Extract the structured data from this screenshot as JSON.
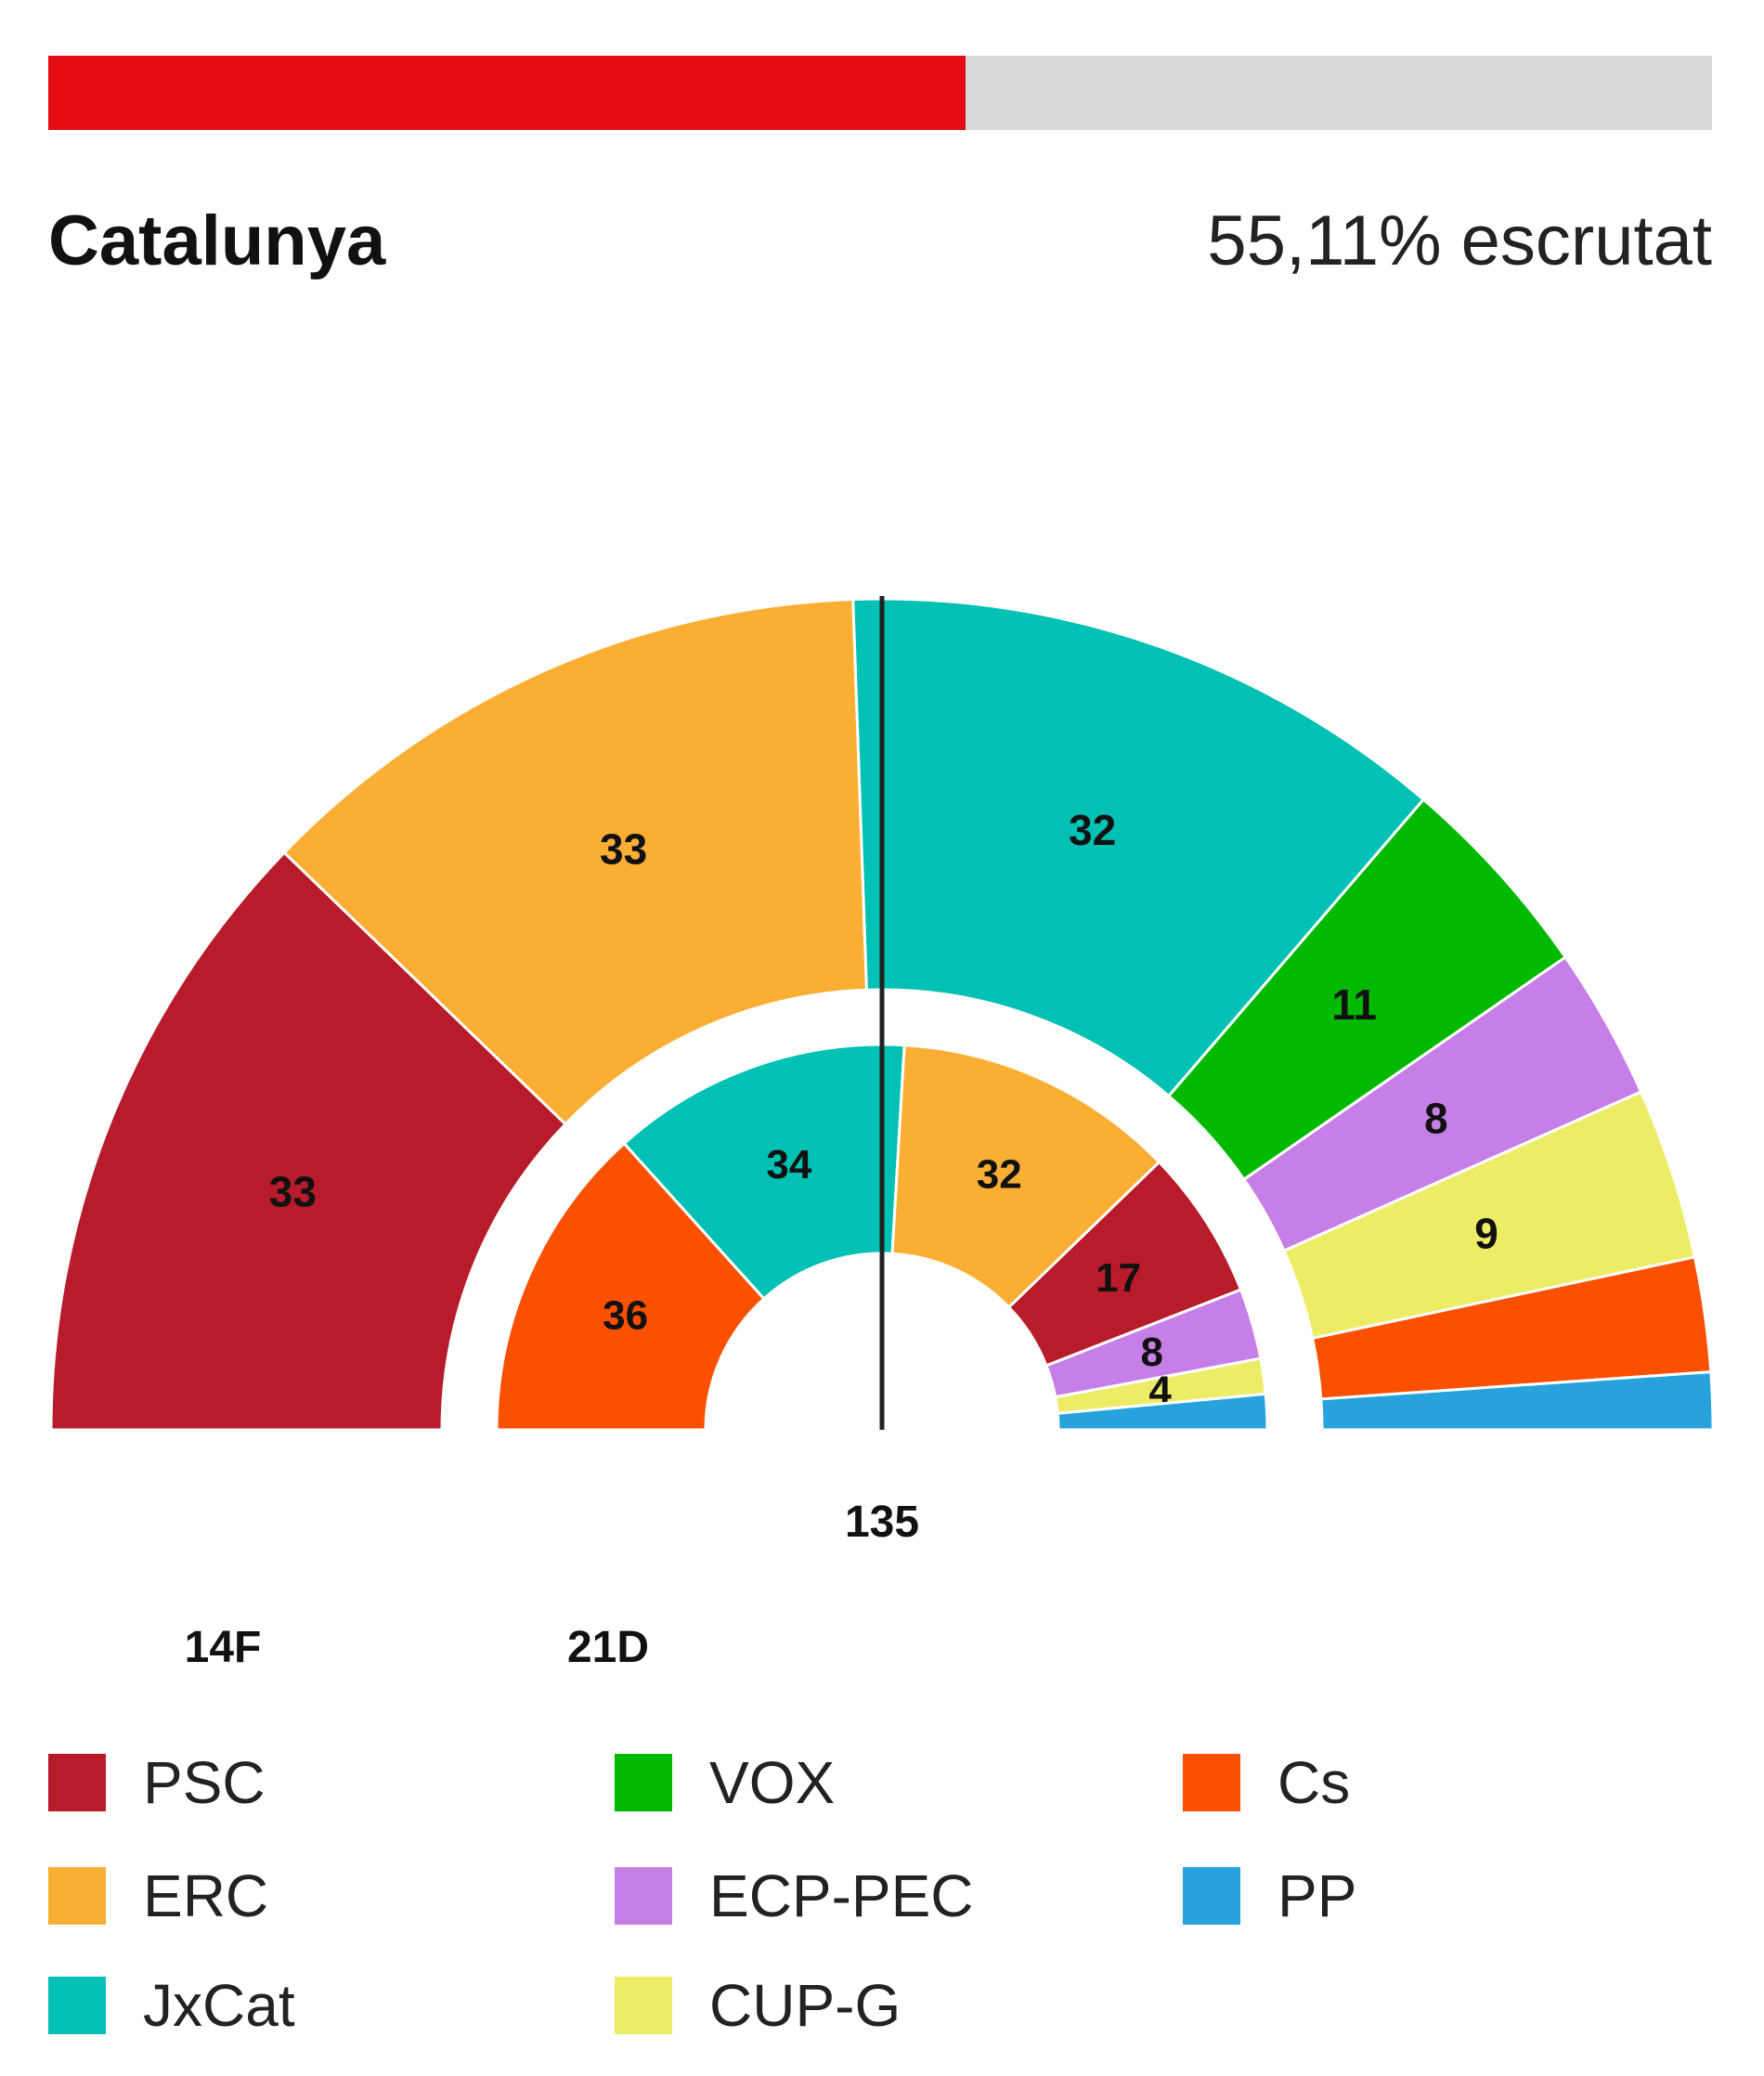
{
  "header": {
    "region": "Catalunya",
    "counted_label": "55,11% escrutat",
    "counted_fraction": 0.5511,
    "progress_color": "#e30d13",
    "track_color": "#d9d9d9"
  },
  "chart_data": {
    "type": "parliament-hemicycle",
    "majority_label": "135",
    "ring_labels": {
      "outer": "14F",
      "inner": "21D"
    },
    "parties": [
      {
        "name": "PSC",
        "color": "#b81b2a"
      },
      {
        "name": "ERC",
        "color": "#fbae34"
      },
      {
        "name": "JxCat",
        "color": "#00c1b3"
      },
      {
        "name": "VOX",
        "color": "#00b900"
      },
      {
        "name": "ECP-PEC",
        "color": "#c77fe8"
      },
      {
        "name": "CUP-G",
        "color": "#ecec66"
      },
      {
        "name": "Cs",
        "color": "#fa5000"
      },
      {
        "name": "PP",
        "color": "#27a2dd"
      }
    ],
    "series": [
      {
        "name": "14F",
        "seats": [
          {
            "party": "PSC",
            "value": 33,
            "label": "33"
          },
          {
            "party": "ERC",
            "value": 33,
            "label": "33"
          },
          {
            "party": "JxCat",
            "value": 32,
            "label": "32"
          },
          {
            "party": "VOX",
            "value": 11,
            "label": "11"
          },
          {
            "party": "ECP-PEC",
            "value": 8,
            "label": "8"
          },
          {
            "party": "CUP-G",
            "value": 9,
            "label": "9"
          },
          {
            "party": "Cs",
            "value": 6,
            "label": ""
          },
          {
            "party": "PP",
            "value": 3,
            "label": ""
          }
        ]
      },
      {
        "name": "21D",
        "seats": [
          {
            "party": "Cs",
            "value": 36,
            "label": "36"
          },
          {
            "party": "JxCat",
            "value": 34,
            "label": "34"
          },
          {
            "party": "ERC",
            "value": 32,
            "label": "32"
          },
          {
            "party": "PSC",
            "value": 17,
            "label": "17"
          },
          {
            "party": "ECP-PEC",
            "value": 8,
            "label": "8"
          },
          {
            "party": "CUP-G",
            "value": 4,
            "label": "4"
          },
          {
            "party": "PP",
            "value": 4,
            "label": ""
          }
        ]
      }
    ]
  },
  "legend": [
    {
      "label": "PSC",
      "color": "#b81b2a"
    },
    {
      "label": "ERC",
      "color": "#fbae34"
    },
    {
      "label": "JxCat",
      "color": "#00c1b3"
    },
    {
      "label": "VOX",
      "color": "#00b900"
    },
    {
      "label": "ECP-PEC",
      "color": "#c77fe8"
    },
    {
      "label": "CUP-G",
      "color": "#ecec66"
    },
    {
      "label": "Cs",
      "color": "#fa5000"
    },
    {
      "label": "PP",
      "color": "#27a2dd"
    }
  ]
}
